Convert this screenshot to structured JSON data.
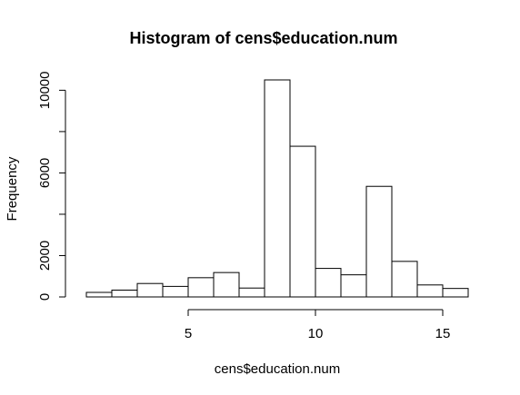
{
  "chart_data": {
    "type": "bar",
    "title": "Histogram of cens$education.num",
    "xlabel": "cens$education.num",
    "ylabel": "Frequency",
    "bins": [
      {
        "x0": 1.0,
        "x1": 2.0,
        "count": 220
      },
      {
        "x0": 2.0,
        "x1": 3.0,
        "count": 330
      },
      {
        "x0": 3.0,
        "x1": 4.0,
        "count": 650
      },
      {
        "x0": 4.0,
        "x1": 5.0,
        "count": 510
      },
      {
        "x0": 5.0,
        "x1": 6.0,
        "count": 930
      },
      {
        "x0": 6.0,
        "x1": 7.0,
        "count": 1180
      },
      {
        "x0": 7.0,
        "x1": 8.0,
        "count": 430
      },
      {
        "x0": 8.0,
        "x1": 9.0,
        "count": 10500
      },
      {
        "x0": 9.0,
        "x1": 10.0,
        "count": 7290
      },
      {
        "x0": 10.0,
        "x1": 11.0,
        "count": 1380
      },
      {
        "x0": 11.0,
        "x1": 12.0,
        "count": 1070
      },
      {
        "x0": 12.0,
        "x1": 13.0,
        "count": 5350
      },
      {
        "x0": 13.0,
        "x1": 14.0,
        "count": 1720
      },
      {
        "x0": 14.0,
        "x1": 15.0,
        "count": 580
      },
      {
        "x0": 15.0,
        "x1": 16.0,
        "count": 410
      }
    ],
    "xlim": [
      1,
      16
    ],
    "ylim": [
      0,
      10500
    ],
    "x_ticks": [
      5,
      10,
      15
    ],
    "x_tick_labels": [
      "5",
      "10",
      "15"
    ],
    "y_ticks": [
      0,
      2000,
      4000,
      6000,
      8000,
      10000
    ],
    "y_tick_labels": [
      "0",
      "2000",
      "",
      "6000",
      "",
      "10000"
    ],
    "bar_fill": "#ffffff",
    "bar_stroke": "#000000",
    "grid": false
  }
}
